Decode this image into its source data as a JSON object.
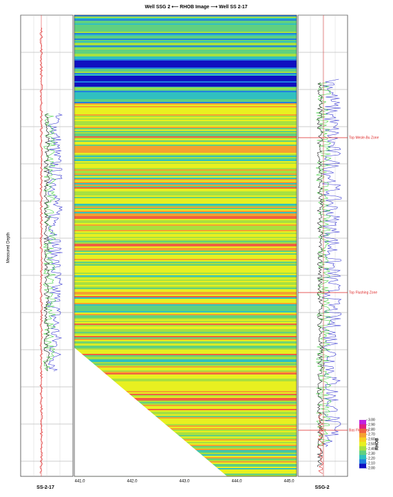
{
  "header": {
    "title": "Well SSG 2 ⟵ RHOB Image ⟶ Well SS 2-17"
  },
  "left_well": {
    "name": "SS-2-17",
    "axis_label": "Measured Depth"
  },
  "right_well": {
    "name": "SSG-2",
    "markers": [
      "Top Mesle-Bu Zone",
      "Top Flushing Zone",
      "Bas Flushing"
    ]
  },
  "image": {
    "x_ticks": [
      "441.0",
      "442.0",
      "443.0",
      "444.0",
      "445.0"
    ]
  },
  "colorbar": {
    "label": "RHOB",
    "ticks": [
      {
        "value": 3,
        "label": "3.00"
      },
      {
        "value": 2.9,
        "label": "2.90"
      },
      {
        "value": 2.8,
        "label": "2.80"
      },
      {
        "value": 2.7,
        "label": "2.70"
      },
      {
        "value": 2.6,
        "label": "2.60"
      },
      {
        "value": 2.5,
        "label": "2.50"
      },
      {
        "value": 2.4,
        "label": "2.40"
      },
      {
        "value": 2.3,
        "label": "2.30"
      },
      {
        "value": 2.2,
        "label": "2.20"
      },
      {
        "value": 2.1,
        "label": "2.10"
      },
      {
        "value": 2,
        "label": "2.00"
      }
    ],
    "colors": [
      "#c020e0",
      "#e02080",
      "#f06040",
      "#f5a030",
      "#f8d020",
      "#e8f020",
      "#a8e040",
      "#60d080",
      "#30c0c0",
      "#2080e0",
      "#1010c0"
    ]
  }
}
